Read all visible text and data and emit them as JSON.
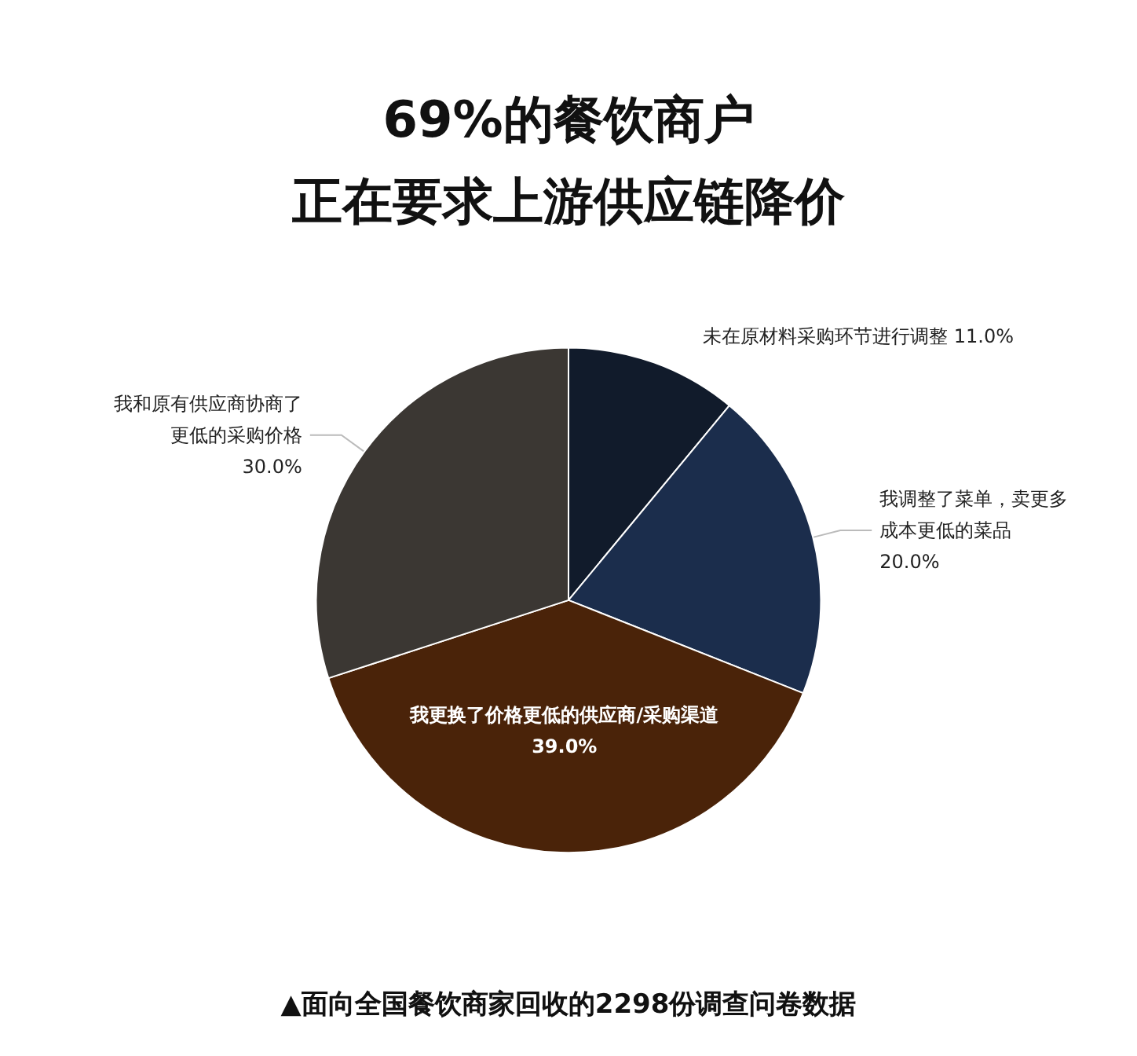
{
  "chart_data": {
    "type": "pie",
    "title": "69%的餐饮商户",
    "subtitle": "正在要求上游供应链降价",
    "categories": [
      "未在原材料采购环节进行调整",
      "我调整了菜单，卖更多成本更低的菜品",
      "我更换了价格更低的供应商/采购渠道",
      "我和原有供应商协商了更低的采购价格"
    ],
    "values": [
      11,
      20,
      39,
      30
    ],
    "colors": [
      "#111b2b",
      "#1b2d4c",
      "#4a2309",
      "#3b3733"
    ],
    "value_labels": [
      "11.0%",
      "20.0%",
      "39.0%",
      "30.0%"
    ],
    "annotations": [
      "▲面向全国餐饮商家回收的2298份调查问卷数据"
    ]
  }
}
